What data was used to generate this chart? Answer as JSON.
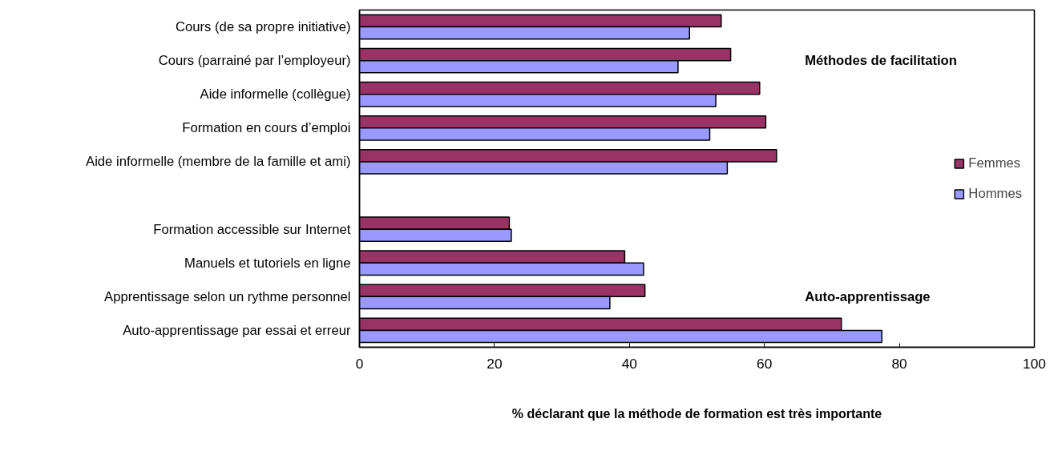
{
  "chart_data": {
    "type": "bar",
    "orientation": "horizontal",
    "xlabel": "% déclarant que la méthode de formation est très importante",
    "categories": [
      "Cours (de sa propre initiative)",
      "Cours (parrainé par l’employeur)",
      "Aide informelle (collègue)",
      "Formation en cours d’emploi",
      "Aide informelle (membre de la famille et ami)",
      null,
      "Formation accessible sur Internet",
      "Manuels et tutoriels en ligne",
      "Apprentissage selon un rythme personnel",
      "Auto-apprentissage par essai et erreur"
    ],
    "series": [
      {
        "name": "Femmes",
        "color": "#993366",
        "values": [
          53.6,
          55.0,
          59.3,
          60.2,
          61.8,
          null,
          22.2,
          39.3,
          42.3,
          71.4
        ]
      },
      {
        "name": "Hommes",
        "color": "#9999ff",
        "values": [
          48.9,
          47.2,
          52.8,
          51.9,
          54.5,
          null,
          22.5,
          42.1,
          37.1,
          77.4
        ]
      }
    ],
    "xlim": [
      0,
      100
    ],
    "xticks": [
      0,
      20,
      40,
      60,
      80,
      100
    ],
    "annotations": [
      "Méthodes de facilitation",
      "Auto-apprentissage"
    ],
    "legend": "right",
    "grid": false
  }
}
